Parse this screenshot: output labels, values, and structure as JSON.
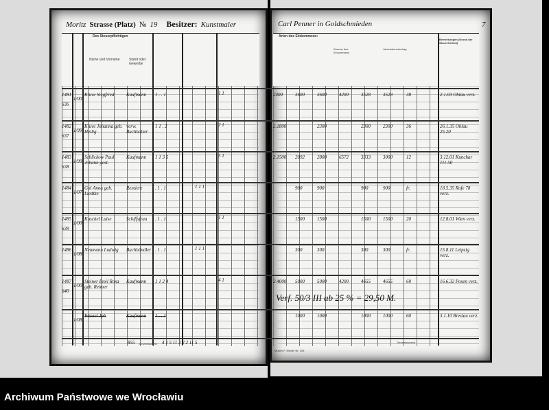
{
  "header": {
    "street_label": "Strasse (Platz)",
    "street_value": "Moritz",
    "number_label": "№",
    "number_value": "19",
    "owner_label": "Besitzer:",
    "owner_value_left": "Kunstmaler",
    "owner_value_right": "Carl Penner in Goldschmieden",
    "page_number": "7"
  },
  "left_page": {
    "column_header": "Des Steuerpflichtigen",
    "sub_headers": [
      "Name und Vorname",
      "Stand oder Gewerbe"
    ],
    "rows": [
      {
        "nr": "1481",
        "sub": "636",
        "date": "1/00",
        "name": "Kluve Siegfried",
        "trade": "Kaufmann",
        "counts": "1 . . 1",
        "marks": "1 1"
      },
      {
        "nr": "1482",
        "sub": "637",
        "date": "1/99",
        "name": "Kluve Johanna geb. Heilig",
        "trade": "verw. Buchhalter",
        "counts": "1 1 . 2",
        "marks": "2 1"
      },
      {
        "nr": "1483",
        "sub": "638",
        "date": "1/99",
        "name": "Schlickow Paul Johann gest.",
        "trade": "Kaufmann",
        "counts": "1 1 3 5",
        "marks": "5 1"
      },
      {
        "nr": "1484",
        "sub": "",
        "date": "1/07",
        "name": "Gol Anna geb. Liedtke",
        "trade": "Rentiere",
        "counts": ". 1 . 1",
        "marks": "1 1 1"
      },
      {
        "nr": "1485",
        "sub": "639",
        "date": "1/00",
        "name": "Kuschel Luise",
        "trade": "Schiffsfrau",
        "counts": ". 1 . 1",
        "marks": "1 1"
      },
      {
        "nr": "1486",
        "sub": "",
        "date": "1/08",
        "name": "Neumann Ludwig",
        "trade": "Buchhändler",
        "counts": ". 1 . 1",
        "marks": "1 1 1"
      },
      {
        "nr": "1487",
        "sub": "640",
        "date": "1/00",
        "name": "Steiner Emil Rosa geb. Reimer",
        "trade": "Kaufmann",
        "counts": "1 1 2 4",
        "marks": "4 1"
      },
      {
        "nr": "",
        "sub": "",
        "date": "1/08",
        "name": "Wenzel Jph",
        "trade": "Kaufmann",
        "counts": "1 . . 1",
        "marks": "",
        "struck": true
      }
    ],
    "totals_label": "Gesamtsumme",
    "totals": "4 1 5 11    2 2 2 11 5",
    "totals_prefix": "855"
  },
  "right_page": {
    "column_header": "Arten des Einkommens:",
    "col_labels": [
      "Summe des Einkommens",
      "Jahressteuerbetrag",
      "Bemerkungen (Grund der Steuerfreiheit)"
    ],
    "rows": [
      {
        "a": "2400",
        "b": "3600",
        "c": "3600",
        "d": "4200",
        "e": "3528",
        "f": "3528",
        "g": "38",
        "remark": "2.1.03 Ohlau verz."
      },
      {
        "a": "2.1800",
        "b": "",
        "c": "2300",
        "d": "",
        "e": "2300",
        "f": "2300",
        "g": "36",
        "remark": "26.1.35 Ohlau 25.20"
      },
      {
        "a": "2.1500",
        "b": "2092",
        "c": "2800",
        "d": "6572",
        "e": "3333",
        "f": "3000",
        "g": "12",
        "remark": "3.12.01 Kunchar 111.50"
      },
      {
        "a": "",
        "b": "900",
        "c": "900",
        "d": "",
        "e": "900",
        "f": "900",
        "g": "fr.",
        "remark": "18.5.35 Rofe 78 verz."
      },
      {
        "a": "",
        "b": "1500",
        "c": "1500",
        "d": "",
        "e": "1500",
        "f": "1500",
        "g": "20",
        "remark": "12.8.01 Wien verz."
      },
      {
        "a": "",
        "b": "300",
        "c": "300",
        "d": "",
        "e": "300",
        "f": "300",
        "g": "fr.",
        "remark": "15.8.11 Leipzig verz."
      },
      {
        "a": "2.4000",
        "b": "5000",
        "c": "5000",
        "d": "4200",
        "e": "4655",
        "f": "4655",
        "g": "60",
        "remark": "16.6.32 Posen verz."
      },
      {
        "a": "",
        "b": "1000",
        "c": "1000",
        "d": "",
        "e": "1000",
        "f": "1000",
        "g": "60",
        "remark": "3.1.10 Breslau verz."
      }
    ],
    "annotation": "Verf. 50/3 III ab 25 % = 29,50 M.",
    "footer_small": "Muster F. Nieder Nr. 105.",
    "totals_label": "Gesamtsumme"
  },
  "archive_caption": "Archiwum Państwowe we Wrocławiu"
}
